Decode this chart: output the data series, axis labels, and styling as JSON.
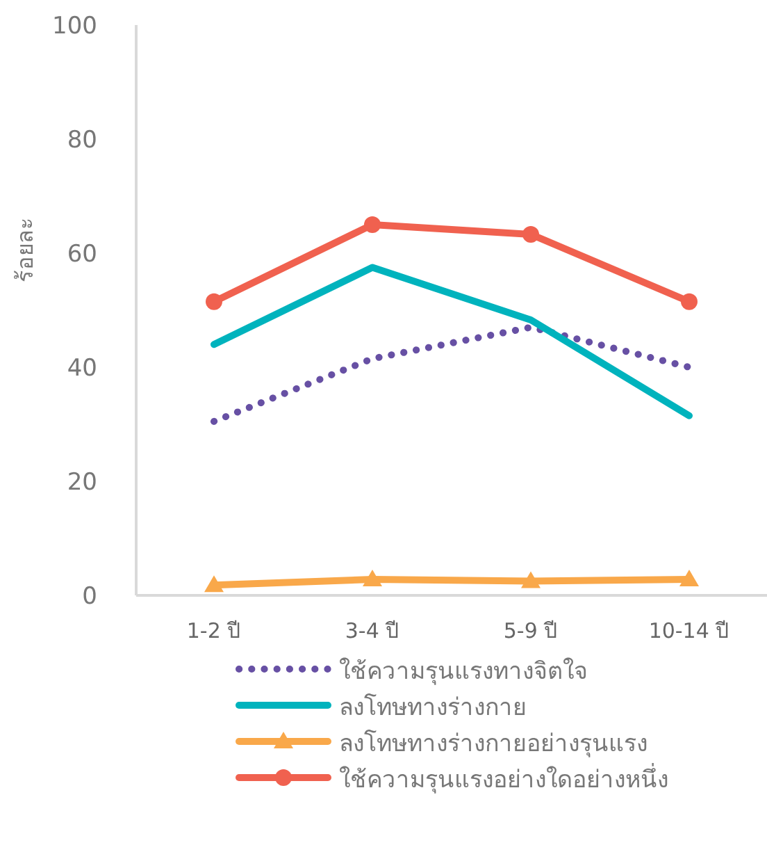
{
  "chart_data": {
    "type": "line",
    "ylabel": "ร้อยละ",
    "categories": [
      "1-2 ปี",
      "3-4 ปี",
      "5-9 ปี",
      "10-14 ปี"
    ],
    "ylim": [
      0,
      100
    ],
    "yticks": [
      0,
      20,
      40,
      60,
      80,
      100
    ],
    "grid": false,
    "legend": "bottom",
    "series": [
      {
        "name": "ใช้ความรุนแรงทางจิตใจ",
        "color": "#6750a4",
        "values": [
          30.5,
          41.5,
          47,
          40
        ],
        "line_style": "dotted",
        "marker": "none"
      },
      {
        "name": "ลงโทษทางร่างกาย",
        "color": "#00b3bd",
        "values": [
          44,
          57.5,
          48.3,
          31.5
        ],
        "line_style": "solid",
        "marker": "none"
      },
      {
        "name": "ลงโทษทางร่างกายอย่างรุนแรง",
        "color": "#f9a84a",
        "values": [
          1.8,
          2.8,
          2.5,
          2.8
        ],
        "line_style": "solid",
        "marker": "triangle"
      },
      {
        "name": "ใช้ความรุนแรงอย่างใดอย่างหนึ่ง",
        "color": "#f0614f",
        "values": [
          51.5,
          65,
          63.3,
          51.5
        ],
        "line_style": "solid",
        "marker": "circle"
      }
    ]
  }
}
